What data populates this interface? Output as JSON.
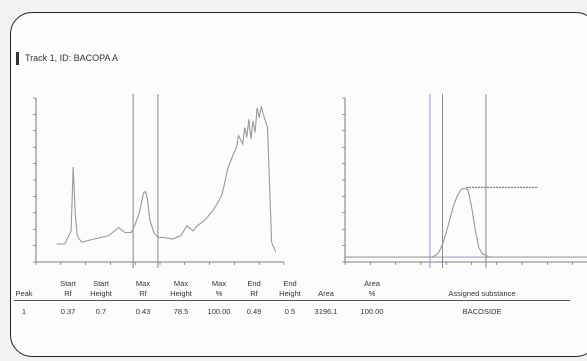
{
  "track_title": "Track 1, ID: BACOPA A",
  "chart_data": [
    {
      "type": "line",
      "title": "",
      "xlabel": "",
      "ylabel": "",
      "grid": false,
      "xlim": [
        -0.1,
        1.1
      ],
      "ylim": [
        0,
        10
      ],
      "x": [
        0.0,
        0.04,
        0.07,
        0.08,
        0.09,
        0.1,
        0.12,
        0.18,
        0.25,
        0.3,
        0.33,
        0.36,
        0.38,
        0.4,
        0.42,
        0.43,
        0.44,
        0.45,
        0.47,
        0.49,
        0.52,
        0.56,
        0.6,
        0.63,
        0.66,
        0.68,
        0.72,
        0.76,
        0.8,
        0.83,
        0.85,
        0.87,
        0.88,
        0.9,
        0.91,
        0.92,
        0.93,
        0.94,
        0.95,
        0.96,
        0.97,
        0.98,
        0.99,
        1.0,
        1.02,
        1.04,
        1.06
      ],
      "y": [
        1.1,
        1.1,
        1.9,
        5.8,
        2.9,
        1.6,
        1.2,
        1.4,
        1.6,
        2.1,
        1.8,
        1.8,
        2.3,
        3.0,
        4.2,
        4.3,
        3.8,
        2.6,
        1.8,
        1.5,
        1.5,
        1.4,
        1.6,
        2.2,
        1.9,
        2.2,
        2.6,
        3.2,
        4.1,
        5.8,
        6.4,
        7.0,
        7.7,
        7.2,
        8.2,
        7.6,
        8.7,
        7.5,
        8.6,
        7.9,
        9.4,
        8.8,
        9.5,
        9.0,
        8.2,
        1.2,
        0.6
      ],
      "vlines": [
        0.37,
        0.49
      ]
    },
    {
      "type": "line",
      "title": "",
      "xlabel": "",
      "ylabel": "",
      "grid": false,
      "xlim": [
        0.1,
        0.8
      ],
      "ylim": [
        0,
        10
      ],
      "x": [
        0.1,
        0.34,
        0.35,
        0.36,
        0.37,
        0.38,
        0.39,
        0.4,
        0.41,
        0.42,
        0.43,
        0.44,
        0.45,
        0.46,
        0.47,
        0.48,
        0.49,
        0.5,
        0.8
      ],
      "y": [
        0.3,
        0.3,
        0.4,
        0.6,
        1.1,
        1.8,
        2.6,
        3.4,
        4.0,
        4.4,
        4.5,
        4.4,
        3.4,
        2.0,
        0.9,
        0.5,
        0.4,
        0.3,
        0.3
      ],
      "vlines": [
        0.335,
        0.37,
        0.49
      ],
      "peak_label_line": {
        "x": [
          0.435,
          0.635
        ],
        "y": 4.55
      }
    }
  ],
  "peak_table": {
    "header_row1": [
      "",
      "Start",
      "Start",
      "Max",
      "Max",
      "Max",
      "End",
      "End",
      "",
      "Area",
      ""
    ],
    "header_row2": [
      "Peak",
      "Rf",
      "Height",
      "Rf",
      "Height",
      "%",
      "Rf",
      "Height",
      "Area",
      "%",
      "Assigned substance"
    ],
    "rows": [
      [
        "1",
        "0.37",
        "0.7",
        "0.43",
        "78.5",
        "100.00",
        "0.49",
        "0.5",
        "3196.1",
        "100.00",
        "BACOSIDE"
      ]
    ]
  },
  "colors": {
    "curve": "#9a9a9a",
    "vline": "#7a7a7a",
    "blue_line": "#7e8fc9",
    "axis": "#555555",
    "text": "#333333"
  }
}
